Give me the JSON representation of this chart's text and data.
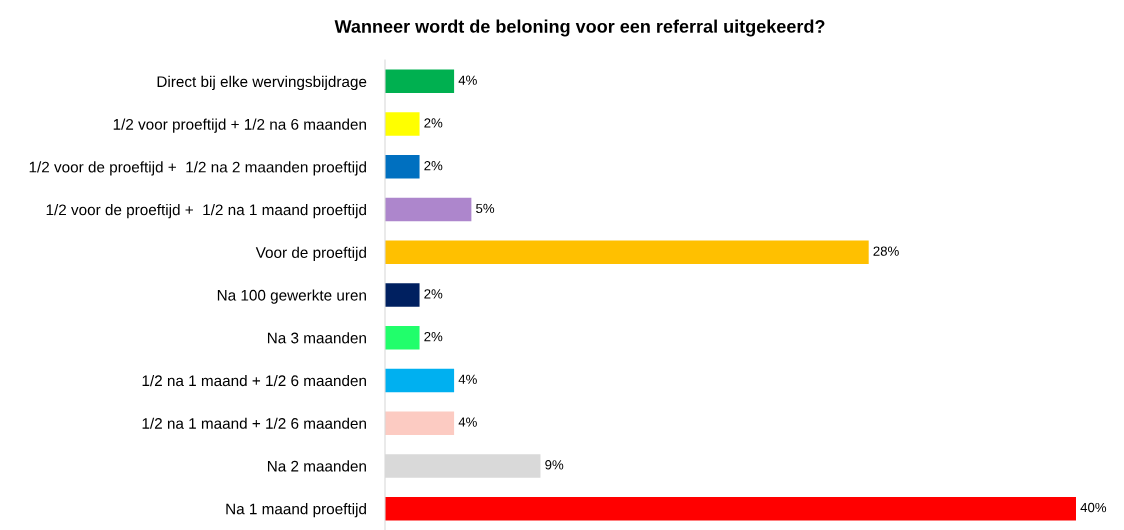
{
  "chart_data": {
    "type": "bar",
    "orientation": "horizontal",
    "title": "Wanneer wordt de beloning voor een referral uitgekeerd?",
    "categories": [
      "Direct bij elke wervingsbijdrage",
      "1/2 voor proeftijd + 1/2 na 6 maanden",
      "1/2 voor de proeftijd +  1/2 na 2 maanden proeftijd",
      "1/2 voor de proeftijd +  1/2 na 1 maand proeftijd",
      "Voor de proeftijd",
      "Na 100 gewerkte uren",
      "Na 3 maanden",
      "1/2 na 1 maand + 1/2 6 maanden",
      "1/2 na 1 maand + 1/2 6 maanden",
      "Na 2 maanden",
      "Na 1 maand proeftijd"
    ],
    "values": [
      4,
      2,
      2,
      5,
      28,
      2,
      2,
      4,
      4,
      9,
      40
    ],
    "value_labels": [
      "4%",
      "2%",
      "2%",
      "5%",
      "28%",
      "2%",
      "2%",
      "4%",
      "4%",
      "9%",
      "40%"
    ],
    "colors": [
      "#00b050",
      "#ffff00",
      "#0070c0",
      "#ad86cc",
      "#ffc000",
      "#002060",
      "#21fe6b",
      "#00b0f0",
      "#fccbc2",
      "#d9d9d9",
      "#ff0000"
    ],
    "grid": false,
    "legend": false
  }
}
